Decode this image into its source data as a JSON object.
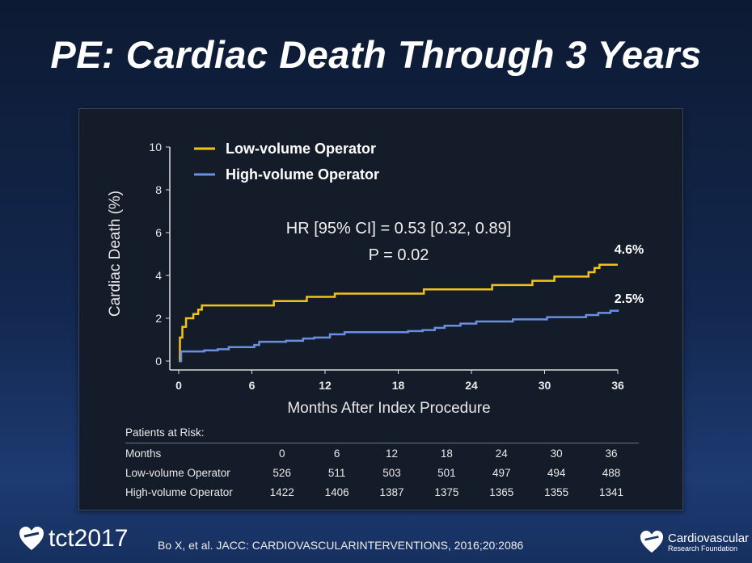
{
  "slide": {
    "title": "PE: Cardiac Death Through 3 Years"
  },
  "chart_data": {
    "type": "line",
    "subtype": "kaplan-meier step",
    "xlabel": "Months After Index Procedure",
    "ylabel": "Cardiac Death (%)",
    "xlim": [
      0,
      36
    ],
    "ylim": [
      0,
      10
    ],
    "xticks": [
      "0",
      "6",
      "12",
      "18",
      "24",
      "30",
      "36"
    ],
    "yticks": [
      "0",
      "2",
      "4",
      "6",
      "8",
      "10"
    ],
    "grid": false,
    "legend_placement": "top-left",
    "annotation": {
      "hr": "HR [95% CI] = 0.53 [0.32, 0.89]",
      "p": "P = 0.02"
    },
    "series": [
      {
        "name": "Low-volume Operator",
        "color": "#f2c21b",
        "end_label": "4.6%",
        "points": [
          [
            0,
            0
          ],
          [
            0.1,
            1.1
          ],
          [
            0.3,
            1.6
          ],
          [
            0.6,
            2.0
          ],
          [
            1.2,
            2.2
          ],
          [
            1.6,
            2.4
          ],
          [
            1.9,
            2.6
          ],
          [
            7.8,
            2.8
          ],
          [
            10.5,
            3.0
          ],
          [
            12.8,
            3.15
          ],
          [
            20.1,
            3.35
          ],
          [
            25.7,
            3.55
          ],
          [
            29,
            3.75
          ],
          [
            30.8,
            3.95
          ],
          [
            33.6,
            4.15
          ],
          [
            34.1,
            4.35
          ],
          [
            34.5,
            4.5
          ],
          [
            36,
            4.5
          ]
        ]
      },
      {
        "name": "High-volume Operator",
        "color": "#6b8fe0",
        "end_label": "2.5%",
        "points": [
          [
            0,
            0
          ],
          [
            0.2,
            0.45
          ],
          [
            2.1,
            0.5
          ],
          [
            3.2,
            0.55
          ],
          [
            4.1,
            0.65
          ],
          [
            6.2,
            0.75
          ],
          [
            6.6,
            0.9
          ],
          [
            8.8,
            0.95
          ],
          [
            10.2,
            1.05
          ],
          [
            11.1,
            1.1
          ],
          [
            12.4,
            1.25
          ],
          [
            13.6,
            1.35
          ],
          [
            18.8,
            1.4
          ],
          [
            20,
            1.45
          ],
          [
            21,
            1.55
          ],
          [
            21.8,
            1.65
          ],
          [
            23.1,
            1.75
          ],
          [
            24.4,
            1.85
          ],
          [
            27.4,
            1.95
          ],
          [
            30.2,
            2.05
          ],
          [
            33.4,
            2.15
          ],
          [
            34.4,
            2.25
          ],
          [
            35.4,
            2.35
          ],
          [
            36,
            2.4
          ]
        ]
      }
    ]
  },
  "risk_table": {
    "title": "Patients at Risk:",
    "header": [
      "Months",
      "0",
      "6",
      "12",
      "18",
      "24",
      "30",
      "36"
    ],
    "rows": [
      [
        "Low-volume Operator",
        "526",
        "511",
        "503",
        "501",
        "497",
        "494",
        "488"
      ],
      [
        "High-volume Operator",
        "1422",
        "1406",
        "1387",
        "1375",
        "1365",
        "1355",
        "1341"
      ]
    ]
  },
  "footer": {
    "logo_left": "tct2017",
    "citation": "Bo X, et al. JACC: CARDIOVASCULARINTERVENTIONS, 2016;20:2086",
    "logo_right_line1": "Cardiovascular",
    "logo_right_line2": "Research Foundation"
  }
}
